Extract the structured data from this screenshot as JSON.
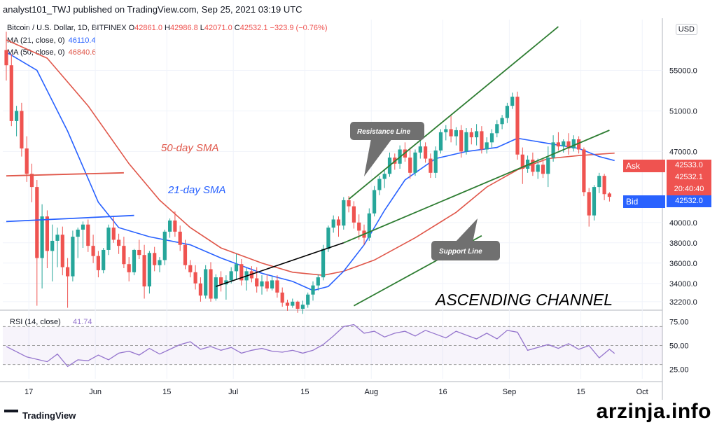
{
  "header": {
    "published": "analyst101_TWJ published on TradingView.com, Sep 25, 2021 03:19 UTC"
  },
  "legend": {
    "symbol": "Bitcoin / U.S. Dollar, 1D, BITFINEX",
    "o_label": "O",
    "o_value": "42861.0",
    "h_label": "H",
    "h_value": "42986.8",
    "l_label": "L",
    "l_value": "42071.0",
    "c_label": "C",
    "c_value": "42532.1",
    "change": "−323.9 (−0.76%)",
    "ma21_label": "MA (21, close, 0)",
    "ma21_value": "46110.4",
    "ma50_label": "MA (50, close, 0)",
    "ma50_value": "46840.6"
  },
  "currency": "USD",
  "price_tags": {
    "ask_label": "Ask",
    "ask_value": "42533.0",
    "last_value": "42532.1",
    "countdown": "20:40:40",
    "bid_label": "Bid",
    "bid_value": "42532.0"
  },
  "annotations": {
    "sma50": "50-day SMA",
    "sma21": "21-day SMA",
    "resistance": "Resistance Line",
    "support": "Support Line",
    "channel": "ASCENDING CHANNEL"
  },
  "rsi_label": "RSI (14, close)",
  "rsi_value": "41.74",
  "footer": {
    "brand": "TradingView"
  },
  "watermark": "arzinja.info",
  "colors": {
    "up": "#26a69a",
    "down": "#ef5350",
    "ma21": "#2962ff",
    "ma50": "#e0574a",
    "channel": "#2e7d32",
    "rsi": "#9575cd"
  },
  "chart_data": {
    "type": "candlestick",
    "y_ticks_price": [
      "55000.0",
      "51000.0",
      "47000.0",
      "40000.0",
      "38000.0",
      "36000.0",
      "34000.0",
      "32200.0"
    ],
    "y_ticks_rsi": [
      "75.00",
      "50.00",
      "25.00"
    ],
    "x_ticks": [
      "17",
      "Jun",
      "15",
      "Jul",
      "15",
      "Aug",
      "16",
      "Sep",
      "15",
      "Oct"
    ],
    "ylim": [
      31500,
      60000
    ],
    "rsi_ylim": [
      15,
      85
    ],
    "candles": [
      {
        "o": 57000,
        "h": 58800,
        "l": 54000,
        "c": 55500
      },
      {
        "o": 55500,
        "h": 56600,
        "l": 49500,
        "c": 50000
      },
      {
        "o": 50000,
        "h": 51500,
        "l": 48500,
        "c": 51000
      },
      {
        "o": 51000,
        "h": 51800,
        "l": 46500,
        "c": 47300
      },
      {
        "o": 47300,
        "h": 48500,
        "l": 44000,
        "c": 44800
      },
      {
        "o": 44800,
        "h": 45800,
        "l": 42000,
        "c": 43500
      },
      {
        "o": 43500,
        "h": 44200,
        "l": 31800,
        "c": 36500
      },
      {
        "o": 36500,
        "h": 41800,
        "l": 33500,
        "c": 40600
      },
      {
        "o": 40600,
        "h": 41200,
        "l": 35500,
        "c": 37200
      },
      {
        "o": 37200,
        "h": 39800,
        "l": 34200,
        "c": 38200
      },
      {
        "o": 38200,
        "h": 39500,
        "l": 35600,
        "c": 38800
      },
      {
        "o": 38800,
        "h": 39600,
        "l": 34800,
        "c": 35600
      },
      {
        "o": 35600,
        "h": 36500,
        "l": 31600,
        "c": 34700
      },
      {
        "o": 34700,
        "h": 39200,
        "l": 34200,
        "c": 38600
      },
      {
        "o": 38600,
        "h": 39500,
        "l": 36500,
        "c": 39300
      },
      {
        "o": 39300,
        "h": 40100,
        "l": 37500,
        "c": 39800
      },
      {
        "o": 39800,
        "h": 40300,
        "l": 37100,
        "c": 37700
      },
      {
        "o": 37700,
        "h": 38800,
        "l": 36000,
        "c": 36700
      },
      {
        "o": 36700,
        "h": 37200,
        "l": 34600,
        "c": 35300
      },
      {
        "o": 35300,
        "h": 37500,
        "l": 35000,
        "c": 37300
      },
      {
        "o": 37300,
        "h": 39800,
        "l": 36800,
        "c": 39500
      },
      {
        "o": 39500,
        "h": 40600,
        "l": 38000,
        "c": 38300
      },
      {
        "o": 38300,
        "h": 38900,
        "l": 36900,
        "c": 37700
      },
      {
        "o": 37700,
        "h": 38600,
        "l": 35500,
        "c": 35900
      },
      {
        "o": 35900,
        "h": 36600,
        "l": 34200,
        "c": 35100
      },
      {
        "o": 35100,
        "h": 37400,
        "l": 34800,
        "c": 37300
      },
      {
        "o": 37300,
        "h": 38300,
        "l": 36400,
        "c": 36800
      },
      {
        "o": 36800,
        "h": 37800,
        "l": 32500,
        "c": 33700
      },
      {
        "o": 33700,
        "h": 37200,
        "l": 33000,
        "c": 37000
      },
      {
        "o": 37000,
        "h": 37600,
        "l": 35200,
        "c": 35800
      },
      {
        "o": 35800,
        "h": 36600,
        "l": 35100,
        "c": 36300
      },
      {
        "o": 36300,
        "h": 39300,
        "l": 35800,
        "c": 39100
      },
      {
        "o": 39100,
        "h": 40400,
        "l": 38500,
        "c": 40200
      },
      {
        "o": 40200,
        "h": 41100,
        "l": 38600,
        "c": 39100
      },
      {
        "o": 39100,
        "h": 39700,
        "l": 37200,
        "c": 37800
      },
      {
        "o": 37800,
        "h": 38300,
        "l": 35400,
        "c": 35800
      },
      {
        "o": 35800,
        "h": 36300,
        "l": 34600,
        "c": 35100
      },
      {
        "o": 35100,
        "h": 35800,
        "l": 33400,
        "c": 34000
      },
      {
        "o": 34000,
        "h": 34600,
        "l": 32200,
        "c": 32800
      },
      {
        "o": 32800,
        "h": 35800,
        "l": 32500,
        "c": 35400
      },
      {
        "o": 35400,
        "h": 36100,
        "l": 32200,
        "c": 32500
      },
      {
        "o": 32500,
        "h": 34900,
        "l": 32300,
        "c": 34600
      },
      {
        "o": 34600,
        "h": 35200,
        "l": 33200,
        "c": 33900
      },
      {
        "o": 33900,
        "h": 34800,
        "l": 32400,
        "c": 34300
      },
      {
        "o": 34300,
        "h": 35600,
        "l": 34000,
        "c": 35200
      },
      {
        "o": 35200,
        "h": 36900,
        "l": 34400,
        "c": 35900
      },
      {
        "o": 35900,
        "h": 36400,
        "l": 33800,
        "c": 34300
      },
      {
        "o": 34300,
        "h": 35500,
        "l": 33300,
        "c": 35200
      },
      {
        "o": 35200,
        "h": 35700,
        "l": 34100,
        "c": 34500
      },
      {
        "o": 34500,
        "h": 35600,
        "l": 33100,
        "c": 33700
      },
      {
        "o": 33700,
        "h": 34800,
        "l": 32900,
        "c": 34200
      },
      {
        "o": 34200,
        "h": 34900,
        "l": 33200,
        "c": 33500
      },
      {
        "o": 33500,
        "h": 34700,
        "l": 33300,
        "c": 34300
      },
      {
        "o": 34300,
        "h": 34800,
        "l": 32600,
        "c": 33100
      },
      {
        "o": 33100,
        "h": 33600,
        "l": 31700,
        "c": 32100
      },
      {
        "o": 32100,
        "h": 32400,
        "l": 31300,
        "c": 31800
      },
      {
        "o": 31800,
        "h": 32500,
        "l": 31600,
        "c": 32200
      },
      {
        "o": 32200,
        "h": 32300,
        "l": 31100,
        "c": 31500
      },
      {
        "o": 31500,
        "h": 32300,
        "l": 31000,
        "c": 31900
      },
      {
        "o": 31900,
        "h": 33100,
        "l": 31600,
        "c": 32900
      },
      {
        "o": 32900,
        "h": 34200,
        "l": 32300,
        "c": 33800
      },
      {
        "o": 33800,
        "h": 34900,
        "l": 33300,
        "c": 34600
      },
      {
        "o": 34600,
        "h": 37800,
        "l": 34300,
        "c": 37400
      },
      {
        "o": 37400,
        "h": 39700,
        "l": 37100,
        "c": 39500
      },
      {
        "o": 39500,
        "h": 40700,
        "l": 39000,
        "c": 40300
      },
      {
        "o": 40300,
        "h": 40600,
        "l": 38600,
        "c": 39700
      },
      {
        "o": 39700,
        "h": 42500,
        "l": 39300,
        "c": 42200
      },
      {
        "o": 42200,
        "h": 42600,
        "l": 41000,
        "c": 41600
      },
      {
        "o": 41600,
        "h": 42100,
        "l": 39400,
        "c": 40000
      },
      {
        "o": 40000,
        "h": 40800,
        "l": 38300,
        "c": 39200
      },
      {
        "o": 39200,
        "h": 39800,
        "l": 37800,
        "c": 38500
      },
      {
        "o": 38500,
        "h": 41400,
        "l": 38200,
        "c": 40900
      },
      {
        "o": 40900,
        "h": 43600,
        "l": 40600,
        "c": 43200
      },
      {
        "o": 43200,
        "h": 44600,
        "l": 42700,
        "c": 44300
      },
      {
        "o": 44300,
        "h": 45300,
        "l": 43400,
        "c": 44800
      },
      {
        "o": 44800,
        "h": 46900,
        "l": 44500,
        "c": 46400
      },
      {
        "o": 46400,
        "h": 46800,
        "l": 45200,
        "c": 45800
      },
      {
        "o": 45800,
        "h": 47600,
        "l": 45300,
        "c": 47200
      },
      {
        "o": 47200,
        "h": 47900,
        "l": 46000,
        "c": 46400
      },
      {
        "o": 46400,
        "h": 47400,
        "l": 44300,
        "c": 44900
      },
      {
        "o": 44900,
        "h": 47200,
        "l": 44600,
        "c": 46900
      },
      {
        "o": 46900,
        "h": 48100,
        "l": 46300,
        "c": 47500
      },
      {
        "o": 47500,
        "h": 47900,
        "l": 45900,
        "c": 46300
      },
      {
        "o": 46300,
        "h": 46800,
        "l": 44400,
        "c": 44900
      },
      {
        "o": 44900,
        "h": 47500,
        "l": 44400,
        "c": 47100
      },
      {
        "o": 47100,
        "h": 49200,
        "l": 46800,
        "c": 48900
      },
      {
        "o": 48900,
        "h": 49600,
        "l": 48100,
        "c": 49200
      },
      {
        "o": 49200,
        "h": 50500,
        "l": 47900,
        "c": 48500
      },
      {
        "o": 48500,
        "h": 49400,
        "l": 47600,
        "c": 49100
      },
      {
        "o": 49100,
        "h": 49600,
        "l": 46400,
        "c": 47000
      },
      {
        "o": 47000,
        "h": 49300,
        "l": 46700,
        "c": 48900
      },
      {
        "o": 48900,
        "h": 49300,
        "l": 47700,
        "c": 48400
      },
      {
        "o": 48400,
        "h": 49700,
        "l": 47600,
        "c": 49000
      },
      {
        "o": 49000,
        "h": 49500,
        "l": 46800,
        "c": 47200
      },
      {
        "o": 47200,
        "h": 48400,
        "l": 46800,
        "c": 47900
      },
      {
        "o": 47900,
        "h": 49200,
        "l": 47400,
        "c": 48800
      },
      {
        "o": 48800,
        "h": 50100,
        "l": 48400,
        "c": 49700
      },
      {
        "o": 49700,
        "h": 50600,
        "l": 49200,
        "c": 50300
      },
      {
        "o": 50300,
        "h": 51800,
        "l": 49800,
        "c": 51500
      },
      {
        "o": 51500,
        "h": 52800,
        "l": 51200,
        "c": 52400
      },
      {
        "o": 52400,
        "h": 52900,
        "l": 46200,
        "c": 46700
      },
      {
        "o": 46700,
        "h": 47400,
        "l": 43800,
        "c": 45300
      },
      {
        "o": 45300,
        "h": 46600,
        "l": 44900,
        "c": 46200
      },
      {
        "o": 46200,
        "h": 46900,
        "l": 44600,
        "c": 45000
      },
      {
        "o": 45000,
        "h": 46300,
        "l": 44300,
        "c": 45700
      },
      {
        "o": 45700,
        "h": 46300,
        "l": 44400,
        "c": 44800
      },
      {
        "o": 44800,
        "h": 47500,
        "l": 43500,
        "c": 46400
      },
      {
        "o": 46400,
        "h": 48600,
        "l": 46000,
        "c": 47900
      },
      {
        "o": 47900,
        "h": 48900,
        "l": 47100,
        "c": 47500
      },
      {
        "o": 47500,
        "h": 48200,
        "l": 46900,
        "c": 48000
      },
      {
        "o": 48000,
        "h": 48800,
        "l": 46700,
        "c": 47300
      },
      {
        "o": 47300,
        "h": 48600,
        "l": 47000,
        "c": 48200
      },
      {
        "o": 48200,
        "h": 48500,
        "l": 46800,
        "c": 47200
      },
      {
        "o": 47200,
        "h": 47400,
        "l": 42600,
        "c": 43000
      },
      {
        "o": 43000,
        "h": 43400,
        "l": 39600,
        "c": 40700
      },
      {
        "o": 40700,
        "h": 43700,
        "l": 40200,
        "c": 43500
      },
      {
        "o": 43500,
        "h": 44900,
        "l": 42900,
        "c": 44600
      },
      {
        "o": 44600,
        "h": 44800,
        "l": 42200,
        "c": 42800
      },
      {
        "o": 42861,
        "h": 42987,
        "l": 42071,
        "c": 42532
      }
    ],
    "ma21": [
      [
        0,
        56800
      ],
      [
        6,
        55000
      ],
      [
        12,
        49000
      ],
      [
        18,
        42000
      ],
      [
        22,
        39500
      ],
      [
        28,
        38600
      ],
      [
        36,
        37800
      ],
      [
        42,
        36500
      ],
      [
        50,
        35000
      ],
      [
        56,
        34200
      ],
      [
        60,
        33300
      ],
      [
        63,
        33700
      ],
      [
        66,
        35200
      ],
      [
        70,
        37800
      ],
      [
        74,
        41200
      ],
      [
        78,
        44200
      ],
      [
        84,
        46300
      ],
      [
        90,
        47000
      ],
      [
        96,
        47400
      ],
      [
        100,
        48300
      ],
      [
        106,
        47800
      ],
      [
        112,
        47300
      ],
      [
        116,
        46500
      ],
      [
        119,
        46110
      ]
    ],
    "ma50": [
      [
        0,
        58000
      ],
      [
        8,
        56200
      ],
      [
        16,
        51500
      ],
      [
        24,
        45800
      ],
      [
        30,
        42200
      ],
      [
        36,
        39500
      ],
      [
        42,
        37500
      ],
      [
        50,
        36000
      ],
      [
        56,
        35100
      ],
      [
        62,
        34800
      ],
      [
        66,
        35200
      ],
      [
        72,
        36300
      ],
      [
        80,
        38500
      ],
      [
        88,
        41000
      ],
      [
        94,
        43500
      ],
      [
        100,
        45200
      ],
      [
        106,
        46300
      ],
      [
        112,
        46600
      ],
      [
        119,
        46840
      ]
    ],
    "sma50_manual_line": [
      [
        0,
        44600
      ],
      [
        23,
        44900
      ]
    ],
    "sma21_manual_line": [
      [
        0,
        40100
      ],
      [
        25,
        40700
      ]
    ],
    "resistance_line": [
      [
        67,
        42300
      ],
      [
        108,
        59300
      ]
    ],
    "support_line": [
      [
        41,
        33700
      ],
      [
        66,
        38000
      ],
      [
        118,
        49100
      ]
    ],
    "rsi": [
      [
        0,
        49
      ],
      [
        4,
        38
      ],
      [
        8,
        33
      ],
      [
        10,
        41
      ],
      [
        12,
        28
      ],
      [
        14,
        35
      ],
      [
        16,
        34
      ],
      [
        18,
        40
      ],
      [
        20,
        35
      ],
      [
        22,
        42
      ],
      [
        24,
        44
      ],
      [
        26,
        40
      ],
      [
        28,
        47
      ],
      [
        30,
        41
      ],
      [
        32,
        46
      ],
      [
        34,
        51
      ],
      [
        36,
        54
      ],
      [
        38,
        46
      ],
      [
        40,
        49
      ],
      [
        42,
        45
      ],
      [
        44,
        48
      ],
      [
        46,
        42
      ],
      [
        48,
        45
      ],
      [
        50,
        47
      ],
      [
        52,
        44
      ],
      [
        54,
        43
      ],
      [
        56,
        45
      ],
      [
        58,
        42
      ],
      [
        60,
        45
      ],
      [
        62,
        51
      ],
      [
        64,
        60
      ],
      [
        66,
        70
      ],
      [
        68,
        72
      ],
      [
        70,
        63
      ],
      [
        72,
        65
      ],
      [
        74,
        59
      ],
      [
        76,
        63
      ],
      [
        78,
        65
      ],
      [
        80,
        60
      ],
      [
        82,
        66
      ],
      [
        84,
        62
      ],
      [
        86,
        58
      ],
      [
        88,
        65
      ],
      [
        90,
        61
      ],
      [
        92,
        57
      ],
      [
        94,
        63
      ],
      [
        96,
        57
      ],
      [
        98,
        66
      ],
      [
        100,
        64
      ],
      [
        102,
        45
      ],
      [
        104,
        48
      ],
      [
        106,
        51
      ],
      [
        108,
        47
      ],
      [
        110,
        52
      ],
      [
        112,
        46
      ],
      [
        114,
        50
      ],
      [
        116,
        37
      ],
      [
        118,
        46
      ],
      [
        119,
        41.74
      ]
    ]
  }
}
